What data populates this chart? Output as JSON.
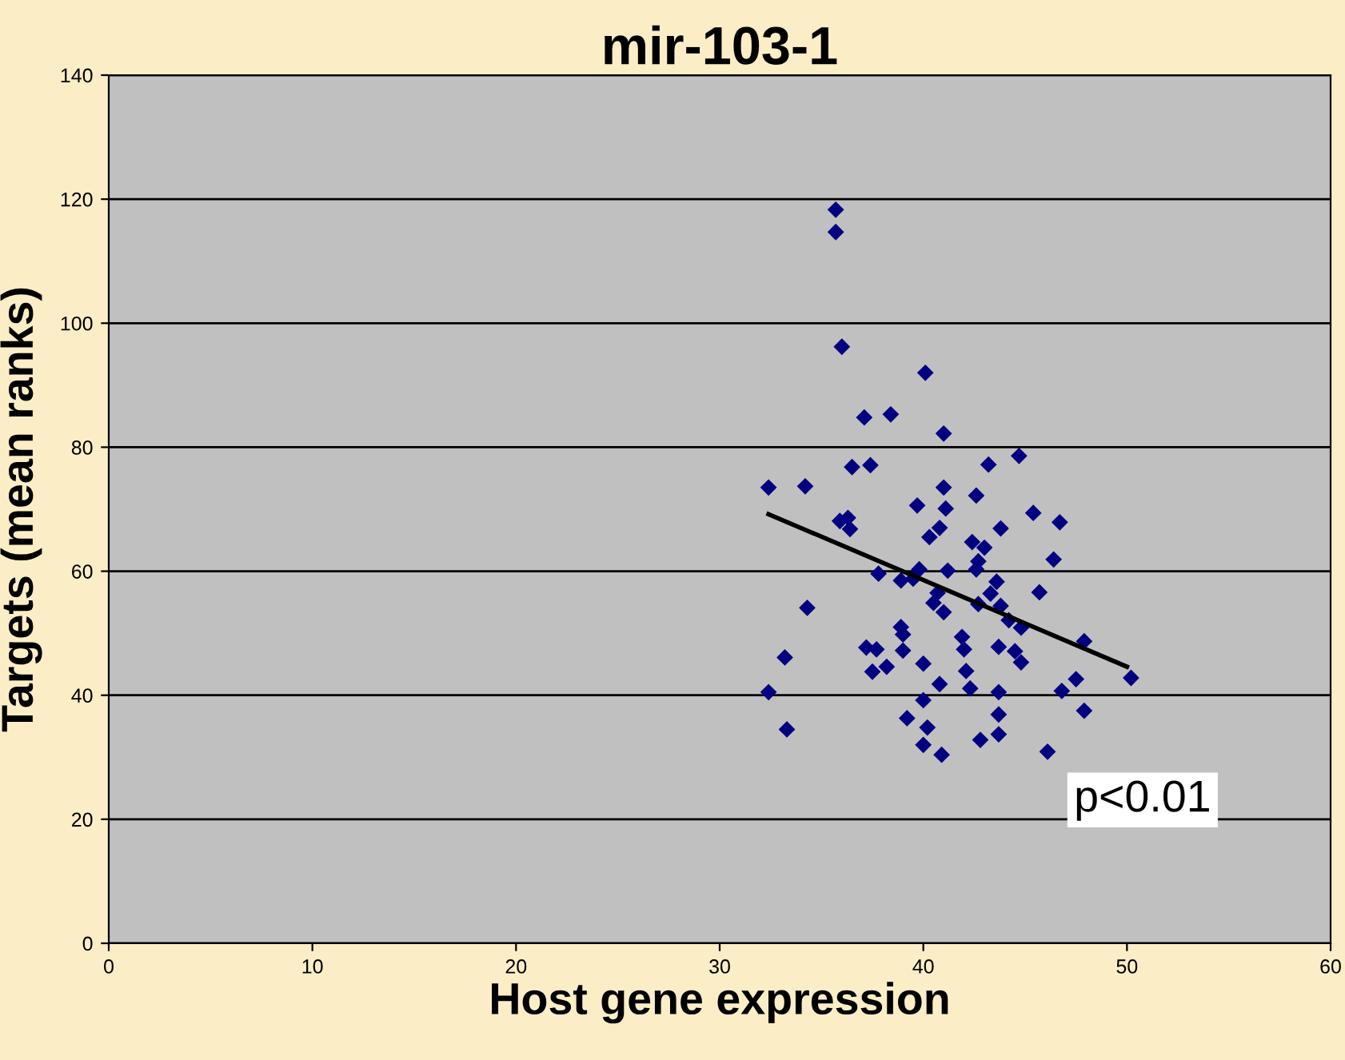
{
  "chart_data": {
    "type": "scatter",
    "title": "mir-103-1",
    "xlabel": "Host gene expression",
    "ylabel": "Targets (mean ranks)",
    "xlim": [
      0,
      60
    ],
    "xticks": [
      0,
      10,
      20,
      30,
      40,
      50,
      60
    ],
    "ylim": [
      0,
      140
    ],
    "yticks": [
      0,
      20,
      40,
      60,
      80,
      100,
      120,
      140
    ],
    "grid": "y",
    "marker": "diamond",
    "legend": false,
    "annotations": [
      "p<0.01"
    ],
    "series": [
      {
        "color": "#000080",
        "x": [
          32.4,
          32.4,
          33.2,
          33.3,
          34.2,
          34.3,
          35.7,
          35.7,
          36.0,
          35.9,
          36.3,
          36.4,
          36.5,
          37.1,
          37.2,
          37.4,
          37.5,
          37.7,
          37.8,
          38.2,
          38.4,
          38.9,
          38.9,
          39.0,
          39.0,
          39.2,
          39.5,
          39.7,
          39.8,
          40.0,
          40.0,
          40.1,
          40.0,
          40.2,
          40.3,
          40.5,
          40.7,
          40.8,
          40.8,
          40.9,
          41.0,
          41.0,
          41.0,
          41.1,
          41.2,
          44.7,
          43.2,
          42.6,
          45.4,
          46.7,
          43.8,
          42.4,
          43.0,
          46.4,
          42.7,
          42.6,
          43.6,
          43.3,
          45.7,
          42.7,
          43.8,
          44.2,
          44.8,
          47.9,
          41.9,
          42.0,
          43.7,
          44.5,
          44.8,
          50.2,
          47.5,
          42.1,
          42.3,
          43.7,
          46.8,
          43.7,
          47.9,
          43.7,
          42.8,
          46.1
        ],
        "values": [
          40.5,
          73.5,
          46.1,
          34.5,
          73.7,
          54.1,
          118.3,
          114.7,
          96.2,
          68.1,
          68.6,
          66.8,
          76.8,
          84.8,
          47.7,
          77.1,
          43.8,
          47.4,
          59.6,
          44.6,
          85.3,
          58.5,
          51.0,
          49.8,
          47.2,
          36.3,
          58.8,
          70.6,
          60.3,
          45.1,
          39.2,
          92.0,
          32.0,
          34.8,
          65.5,
          54.9,
          56.5,
          67.0,
          41.8,
          30.4,
          82.2,
          73.5,
          53.4,
          70.1,
          60.1,
          78.6,
          77.2,
          72.2,
          69.4,
          67.9,
          66.9,
          64.7,
          63.8,
          61.9,
          61.6,
          60.3,
          58.3,
          56.4,
          56.6,
          54.7,
          54.4,
          52.1,
          50.9,
          48.7,
          49.4,
          47.4,
          47.8,
          47.1,
          45.3,
          42.8,
          42.6,
          43.9,
          41.1,
          40.5,
          40.7,
          36.9,
          37.5,
          33.7,
          32.8,
          30.9
        ]
      },
      {
        "type": "line",
        "color": "#000000",
        "x": [
          32.4,
          50.0
        ],
        "values": [
          69.2,
          44.6
        ],
        "marker": "none"
      }
    ]
  }
}
